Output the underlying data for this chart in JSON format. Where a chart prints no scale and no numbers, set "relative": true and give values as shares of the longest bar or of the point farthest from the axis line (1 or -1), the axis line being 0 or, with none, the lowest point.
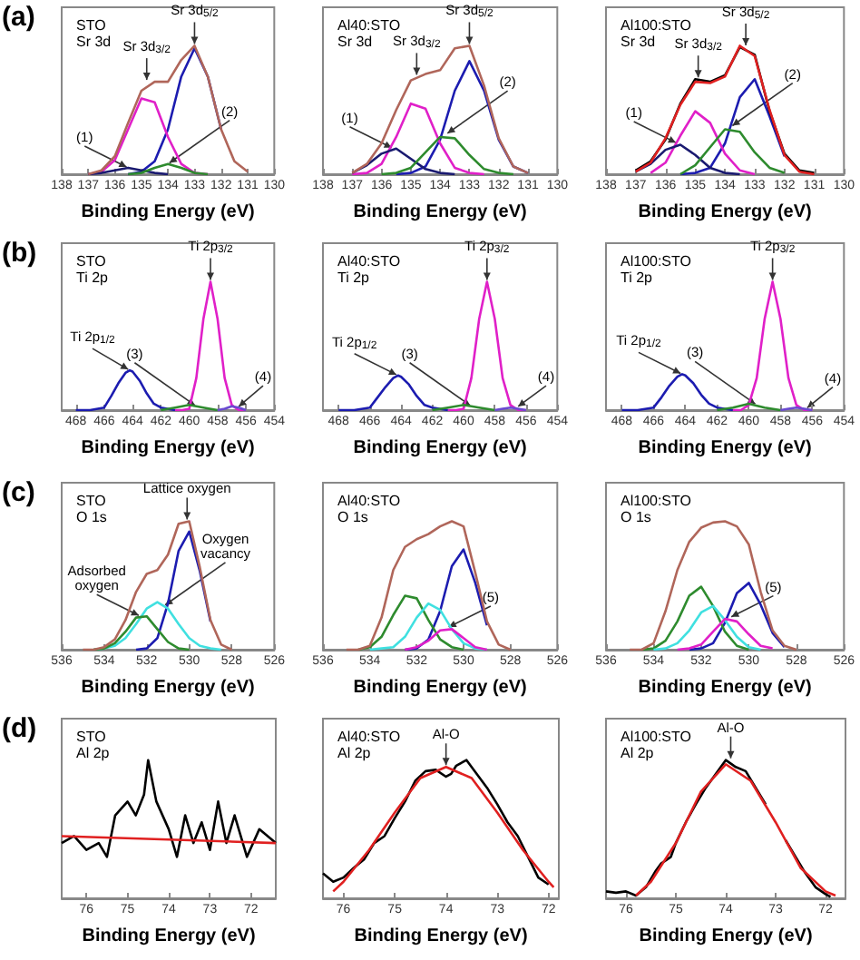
{
  "chart_data": [
    {
      "type": "line",
      "title": "STO",
      "subtitle": "Sr 3d",
      "xlabel": "Binding Energy (eV)",
      "relative": true,
      "tick_labels": "x",
      "xlim": [
        138,
        130
      ],
      "xticks": [
        138,
        137,
        136,
        135,
        134,
        133,
        132,
        131,
        130
      ],
      "annotations": [
        "(a)",
        {
          "text": "Sr 3d$_{3/2}$",
          "x": 134.8,
          "y": 0.72
        },
        {
          "text": "Sr 3d$_{5/2}$",
          "x": 133,
          "y": 1
        },
        {
          "text": "(1)",
          "x": 135.5,
          "y": 0.05
        },
        {
          "text": "(2)",
          "x": 134,
          "y": 0.08
        }
      ],
      "x": [
        137,
        136.5,
        136,
        135.5,
        135,
        134.5,
        134,
        133.5,
        133,
        132.5,
        132,
        131.5,
        131
      ],
      "series": [
        {
          "color": "#1c1cb0",
          "values": [
            null,
            null,
            null,
            0,
            0.02,
            0.1,
            0.35,
            0.76,
            0.98,
            0.76,
            0.35,
            null,
            null
          ]
        },
        {
          "color": "#e020c8",
          "values": [
            0,
            0.02,
            0.11,
            0.35,
            0.59,
            0.56,
            0.29,
            0.08,
            0.01,
            0,
            null,
            null,
            null
          ]
        },
        {
          "color": "#1a1a70",
          "values": [
            0,
            0.01,
            0.03,
            0.05,
            0.03,
            0.01,
            0,
            null,
            null,
            null,
            null,
            null,
            null
          ]
        },
        {
          "color": "#2e8b2e",
          "values": [
            null,
            null,
            null,
            0,
            0.01,
            0.05,
            0.08,
            0.05,
            0.01,
            0,
            null,
            null,
            null
          ]
        },
        {
          "color": "#b0665a",
          "values": [
            0,
            0.03,
            0.14,
            0.4,
            0.65,
            0.72,
            0.72,
            0.89,
            1,
            0.76,
            0.35,
            0.1,
            0.02
          ]
        }
      ]
    },
    {
      "type": "line",
      "title": "Al40:STO",
      "subtitle": "Sr 3d",
      "xlabel": "Binding Energy (eV)",
      "relative": true,
      "tick_labels": "x",
      "xlim": [
        138,
        130
      ],
      "xticks": [
        138,
        137,
        136,
        135,
        134,
        133,
        132,
        131,
        130
      ],
      "annotations": [
        {
          "text": "Sr 3d$_{3/2}$",
          "x": 134.8,
          "y": 0.76
        },
        {
          "text": "Sr 3d$_{5/2}$",
          "x": 133,
          "y": 1
        },
        {
          "text": "(1)",
          "x": 135.6,
          "y": 0.2
        },
        {
          "text": "(2)",
          "x": 133.8,
          "y": 0.31
        }
      ],
      "x": [
        137,
        136.5,
        136,
        135.5,
        135,
        134.5,
        134,
        133.5,
        133,
        132.5,
        132,
        131.5,
        131
      ],
      "series": [
        {
          "color": "#1c1cb0",
          "values": [
            null,
            null,
            null,
            0,
            0.01,
            0.06,
            0.27,
            0.65,
            0.88,
            0.65,
            0.27,
            0.06,
            0.01
          ]
        },
        {
          "color": "#e020c8",
          "values": [
            0,
            0.01,
            0.08,
            0.29,
            0.55,
            0.51,
            0.24,
            0.05,
            0.01,
            0,
            null,
            null,
            null
          ]
        },
        {
          "color": "#1a1a70",
          "values": [
            0.01,
            0.07,
            0.16,
            0.2,
            0.12,
            0.04,
            0.01,
            0,
            null,
            null,
            null,
            null,
            null
          ]
        },
        {
          "color": "#2e8b2e",
          "values": [
            null,
            null,
            0,
            0.01,
            0.05,
            0.17,
            0.29,
            0.28,
            0.15,
            0.04,
            0.01,
            0,
            null
          ]
        },
        {
          "color": "#b0665a",
          "values": [
            0.01,
            0.08,
            0.24,
            0.5,
            0.73,
            0.78,
            0.81,
            0.98,
            1,
            0.69,
            0.28,
            0.06,
            0.01
          ]
        }
      ]
    },
    {
      "type": "line",
      "title": "Al100:STO",
      "subtitle": "Sr 3d",
      "xlabel": "Binding Energy (eV)",
      "relative": true,
      "tick_labels": "x",
      "xlim": [
        138,
        130
      ],
      "xticks": [
        138,
        137,
        136,
        135,
        134,
        133,
        132,
        131,
        130
      ],
      "annotations": [
        {
          "text": "Sr 3d$_{3/2}$",
          "x": 134.9,
          "y": 0.74
        },
        {
          "text": "Sr 3d$_{5/2}$",
          "x": 133.3,
          "y": 0.99
        },
        {
          "text": "(1)",
          "x": 135.6,
          "y": 0.24
        },
        {
          "text": "(2)",
          "x": 133.8,
          "y": 0.37
        }
      ],
      "x": [
        137,
        136.5,
        136,
        135.5,
        135,
        134.5,
        134,
        133.5,
        133,
        132.5,
        132,
        131.5,
        131
      ],
      "series": [
        {
          "color": "#1c1cb0",
          "values": [
            null,
            null,
            null,
            0,
            0.01,
            0.05,
            0.24,
            0.6,
            0.74,
            0.45,
            0.14,
            null,
            null
          ]
        },
        {
          "color": "#e020c8",
          "values": [
            null,
            0.01,
            0.09,
            0.3,
            0.49,
            0.4,
            0.16,
            0.03,
            0,
            null,
            null,
            null,
            null
          ]
        },
        {
          "color": "#1a1a70",
          "values": [
            0.02,
            0.08,
            0.19,
            0.23,
            0.15,
            0.05,
            0.01,
            0,
            null,
            null,
            null,
            null,
            null
          ]
        },
        {
          "color": "#2e8b2e",
          "values": [
            null,
            null,
            null,
            0,
            0.07,
            0.21,
            0.35,
            0.33,
            0.17,
            0.05,
            0.01,
            null,
            null
          ]
        },
        {
          "color": "#000000",
          "values": [
            0.03,
            0.1,
            0.27,
            0.55,
            0.74,
            0.72,
            0.77,
            0.99,
            0.93,
            0.49,
            0.16,
            0.03,
            0.01
          ]
        },
        {
          "color": "#e02020",
          "values": [
            0.02,
            0.09,
            0.28,
            0.54,
            0.72,
            0.71,
            0.76,
            1,
            0.92,
            0.5,
            0.15,
            0.02,
            0
          ]
        }
      ]
    },
    {
      "type": "line",
      "title": "STO",
      "subtitle": "Ti 2p",
      "xlabel": "Binding Energy (eV)",
      "relative": true,
      "tick_labels": "x",
      "xlim": [
        469,
        454
      ],
      "xticks": [
        468,
        466,
        464,
        462,
        460,
        458,
        456,
        454
      ],
      "annotations": [
        "(b)",
        {
          "text": "Ti 2p$_{1/2}$",
          "x": 464.2,
          "y": 0.31
        },
        {
          "text": "Ti 2p$_{3/2}$",
          "x": 458.5,
          "y": 1
        },
        {
          "text": "(3)",
          "x": 459.5,
          "y": 0.03
        },
        {
          "text": "(4)",
          "x": 456.6,
          "y": 0.02
        }
      ],
      "series": [
        {
          "color": "#1c1cb0",
          "x": [
            468,
            467,
            466,
            465.5,
            465,
            464.5,
            464.2,
            464,
            463.5,
            463,
            462.5,
            462,
            461
          ],
          "values": [
            0,
            0,
            0.02,
            0.11,
            0.21,
            0.29,
            0.31,
            0.3,
            0.23,
            0.13,
            0.05,
            0.02,
            0
          ]
        },
        {
          "color": "#e020c8",
          "x": [
            461,
            460.5,
            460,
            459.5,
            459,
            458.5,
            458,
            457.5,
            457,
            456.5,
            456
          ],
          "values": [
            0,
            0,
            0.01,
            0.25,
            0.71,
            1,
            0.71,
            0.25,
            0.04,
            0,
            0
          ]
        },
        {
          "color": "#2e8b2e",
          "x": [
            462,
            461,
            460,
            459,
            458
          ],
          "values": [
            0,
            0.02,
            0.04,
            0.02,
            0
          ]
        },
        {
          "color": "#6a4ad0",
          "x": [
            458,
            457.5,
            457,
            456.5,
            456
          ],
          "values": [
            0,
            0.01,
            0.03,
            0.02,
            0
          ]
        }
      ]
    },
    {
      "type": "line",
      "title": "Al40:STO",
      "subtitle": "Ti 2p",
      "xlabel": "Binding Energy (eV)",
      "relative": true,
      "tick_labels": "x",
      "xlim": [
        469,
        454
      ],
      "xticks": [
        468,
        466,
        464,
        462,
        460,
        458,
        456,
        454
      ],
      "annotations": [
        {
          "text": "Ti 2p$_{1/2}$",
          "x": 464.2,
          "y": 0.27
        },
        {
          "text": "Ti 2p$_{3/2}$",
          "x": 458.5,
          "y": 1
        },
        {
          "text": "(3)",
          "x": 459.5,
          "y": 0.03
        },
        {
          "text": "(4)",
          "x": 456.6,
          "y": 0.02
        }
      ],
      "series": [
        {
          "color": "#1c1cb0",
          "x": [
            468,
            467,
            466,
            465.5,
            465,
            464.5,
            464.2,
            464,
            463.5,
            463,
            462.5,
            462,
            461
          ],
          "values": [
            0,
            0,
            0.02,
            0.1,
            0.18,
            0.25,
            0.27,
            0.26,
            0.2,
            0.11,
            0.04,
            0.02,
            0
          ]
        },
        {
          "color": "#e020c8",
          "x": [
            461,
            460.5,
            460,
            459.5,
            459,
            458.5,
            458,
            457.5,
            457,
            456.5,
            456
          ],
          "values": [
            0,
            0,
            0.01,
            0.25,
            0.71,
            1,
            0.71,
            0.25,
            0.04,
            0,
            0
          ]
        },
        {
          "color": "#2e8b2e",
          "x": [
            462,
            461,
            460,
            459,
            458
          ],
          "values": [
            0,
            0.02,
            0.04,
            0.02,
            0
          ]
        },
        {
          "color": "#6a4ad0",
          "x": [
            458,
            457.5,
            457,
            456.5,
            456
          ],
          "values": [
            0,
            0.01,
            0.02,
            0.01,
            0
          ]
        }
      ]
    },
    {
      "type": "line",
      "title": "Al100:STO",
      "subtitle": "Ti 2p",
      "xlabel": "Binding Energy (eV)",
      "relative": true,
      "tick_labels": "x",
      "xlim": [
        469,
        454
      ],
      "xticks": [
        468,
        466,
        464,
        462,
        460,
        458,
        456,
        454
      ],
      "annotations": [
        {
          "text": "Ti 2p$_{1/2}$",
          "x": 464.2,
          "y": 0.28
        },
        {
          "text": "Ti 2p$_{3/2}$",
          "x": 458.5,
          "y": 1
        },
        {
          "text": "(3)",
          "x": 459.5,
          "y": 0.04
        },
        {
          "text": "(4)",
          "x": 456.4,
          "y": 0.01
        }
      ],
      "series": [
        {
          "color": "#1c1cb0",
          "x": [
            468,
            467,
            466,
            465.5,
            465,
            464.5,
            464.2,
            464,
            463.5,
            463,
            462.5,
            462,
            461
          ],
          "values": [
            0,
            0,
            0.02,
            0.1,
            0.19,
            0.26,
            0.28,
            0.27,
            0.21,
            0.12,
            0.05,
            0.02,
            0
          ]
        },
        {
          "color": "#e020c8",
          "x": [
            461,
            460.5,
            460,
            459.5,
            459,
            458.5,
            458,
            457.5,
            457,
            456.5,
            456
          ],
          "values": [
            0,
            0,
            0.04,
            0.25,
            0.71,
            1,
            0.71,
            0.25,
            0.04,
            0,
            0
          ]
        },
        {
          "color": "#2e8b2e",
          "x": [
            462,
            461,
            460,
            459,
            458
          ],
          "values": [
            0,
            0.02,
            0.05,
            0.02,
            0
          ]
        },
        {
          "color": "#6a4ad0",
          "x": [
            458,
            457.5,
            457,
            456.5,
            456
          ],
          "values": [
            0,
            0.01,
            0.02,
            0.01,
            0
          ]
        }
      ]
    },
    {
      "type": "line",
      "title": "STO",
      "subtitle": "O 1s",
      "xlabel": "Binding Energy (eV)",
      "relative": true,
      "tick_labels": "x",
      "xlim": [
        536,
        526
      ],
      "xticks": [
        536,
        534,
        532,
        530,
        528,
        526
      ],
      "annotations": [
        "(c)",
        {
          "text": "Lattice oxygen",
          "x": 530.1,
          "y": 1
        },
        {
          "text": "Adsorbed oxygen",
          "x": 532.3,
          "y": 0.26
        },
        {
          "text": "Oxygen vacancy",
          "x": 531.2,
          "y": 0.34
        }
      ],
      "x": [
        535,
        534.5,
        534,
        533.5,
        533,
        532.5,
        532,
        531.5,
        531,
        530.5,
        530,
        529.5,
        529,
        528.5,
        528
      ],
      "series": [
        {
          "color": "#1c1cb0",
          "values": [
            null,
            null,
            null,
            null,
            null,
            0,
            0.01,
            0.09,
            0.36,
            0.77,
            0.92,
            0.61,
            0.22,
            null,
            null
          ]
        },
        {
          "color": "#40e0e0",
          "values": [
            null,
            0,
            0.01,
            0.03,
            0.09,
            0.2,
            0.32,
            0.37,
            0.32,
            0.2,
            0.09,
            0.03,
            0.01,
            0,
            null
          ]
        },
        {
          "color": "#2e8b2e",
          "values": [
            null,
            0,
            0.01,
            0.05,
            0.14,
            0.25,
            0.26,
            0.16,
            0.06,
            0.01,
            0,
            null,
            null,
            null,
            null
          ]
        },
        {
          "color": "#b0665a",
          "values": [
            0,
            0,
            0.02,
            0.08,
            0.23,
            0.45,
            0.59,
            0.62,
            0.74,
            0.98,
            1,
            0.64,
            0.23,
            0.04,
            0
          ]
        }
      ]
    },
    {
      "type": "line",
      "title": "Al40:STO",
      "subtitle": "O 1s",
      "xlabel": "Binding Energy (eV)",
      "relative": true,
      "tick_labels": "x",
      "xlim": [
        536,
        526
      ],
      "xticks": [
        536,
        534,
        532,
        530,
        528,
        526
      ],
      "annotations": [
        {
          "text": "(5)",
          "x": 530.7,
          "y": 0.17
        }
      ],
      "x": [
        535,
        534.5,
        534,
        533.5,
        533,
        532.5,
        532,
        531.5,
        531,
        530.5,
        530,
        529.5,
        529,
        528.5,
        528
      ],
      "series": [
        {
          "color": "#1c1cb0",
          "values": [
            null,
            null,
            null,
            null,
            null,
            0,
            0.01,
            0.08,
            0.3,
            0.65,
            0.78,
            0.52,
            0.19,
            null,
            null
          ]
        },
        {
          "color": "#2e8b2e",
          "values": [
            null,
            0,
            0.02,
            0.1,
            0.27,
            0.42,
            0.4,
            0.23,
            0.08,
            0.02,
            0,
            null,
            null,
            null,
            null
          ]
        },
        {
          "color": "#40e0e0",
          "values": [
            null,
            null,
            0,
            0.01,
            0.02,
            0.1,
            0.25,
            0.36,
            0.31,
            0.16,
            0.05,
            0.01,
            0,
            null,
            null
          ]
        },
        {
          "color": "#e020c8",
          "values": [
            null,
            null,
            null,
            null,
            null,
            0,
            0.02,
            0.07,
            0.15,
            0.16,
            0.09,
            0.02,
            0,
            null,
            null
          ]
        },
        {
          "color": "#b0665a",
          "values": [
            0,
            0,
            0.03,
            0.25,
            0.62,
            0.8,
            0.86,
            0.9,
            0.96,
            1,
            0.96,
            0.6,
            0.22,
            0.04,
            0
          ]
        }
      ]
    },
    {
      "type": "line",
      "title": "Al100:STO",
      "subtitle": "O 1s",
      "xlabel": "Binding Energy (eV)",
      "relative": true,
      "tick_labels": "x",
      "xlim": [
        536,
        526
      ],
      "xticks": [
        536,
        534,
        532,
        530,
        528,
        526
      ],
      "annotations": [
        {
          "text": "(5)",
          "x": 530.8,
          "y": 0.25
        }
      ],
      "x": [
        535,
        534.5,
        534,
        533.5,
        533,
        532.5,
        532,
        531.5,
        531,
        530.5,
        530,
        529.5,
        529,
        528.5,
        528
      ],
      "series": [
        {
          "color": "#1c1cb0",
          "values": [
            null,
            null,
            null,
            null,
            null,
            0,
            0.01,
            0.05,
            0.21,
            0.44,
            0.52,
            0.35,
            0.13,
            0.02,
            null
          ]
        },
        {
          "color": "#2e8b2e",
          "values": [
            null,
            0,
            0.01,
            0.07,
            0.22,
            0.42,
            0.49,
            0.34,
            0.14,
            0.03,
            0,
            null,
            null,
            null,
            null
          ]
        },
        {
          "color": "#40e0e0",
          "values": [
            null,
            null,
            0,
            0.01,
            0.05,
            0.15,
            0.29,
            0.34,
            0.23,
            0.1,
            0.02,
            0,
            null,
            null,
            null
          ]
        },
        {
          "color": "#e020c8",
          "values": [
            null,
            null,
            null,
            null,
            0,
            0.01,
            0.04,
            0.14,
            0.24,
            0.22,
            0.12,
            0.03,
            0.01,
            null,
            null
          ]
        },
        {
          "color": "#b0665a",
          "values": [
            0,
            0,
            0.05,
            0.3,
            0.62,
            0.84,
            0.95,
            0.99,
            1,
            0.96,
            0.82,
            0.45,
            0.15,
            0.03,
            0
          ]
        }
      ]
    },
    {
      "type": "line",
      "title": "STO",
      "subtitle": "Al 2p",
      "xlabel": "Binding Energy (eV)",
      "relative": true,
      "tick_labels": "x",
      "xlim": [
        76.6,
        71.4
      ],
      "xticks": [
        76,
        75,
        74,
        73,
        72
      ],
      "annotations": [
        "(d)"
      ],
      "series": [
        {
          "color": "#000000",
          "x": [
            76.6,
            76.3,
            76,
            75.7,
            75.5,
            75.3,
            75,
            74.8,
            74.6,
            74.5,
            74.3,
            74,
            73.8,
            73.6,
            73.4,
            73.2,
            73,
            72.8,
            72.6,
            72.4,
            72.1,
            71.8,
            71.4
          ],
          "values": [
            0.4,
            0.45,
            0.35,
            0.4,
            0.3,
            0.6,
            0.7,
            0.6,
            0.75,
            1,
            0.7,
            0.5,
            0.3,
            0.6,
            0.4,
            0.55,
            0.35,
            0.7,
            0.4,
            0.6,
            0.3,
            0.5,
            0.4
          ]
        },
        {
          "color": "#e02020",
          "x": [
            76.6,
            71.4
          ],
          "values": [
            0.45,
            0.4
          ]
        }
      ]
    },
    {
      "type": "line",
      "title": "Al40:STO",
      "subtitle": "Al 2p",
      "xlabel": "Binding Energy (eV)",
      "relative": true,
      "tick_labels": "x",
      "xlim": [
        76.4,
        71.8
      ],
      "xticks": [
        76,
        75,
        74,
        73,
        72
      ],
      "annotations": [
        {
          "text": "Al-O",
          "x": 74,
          "y": 0.95
        }
      ],
      "series": [
        {
          "color": "#000000",
          "x": [
            76.4,
            76.2,
            76,
            75.8,
            75.6,
            75.4,
            75.2,
            75,
            74.8,
            74.6,
            74.4,
            74.2,
            74,
            73.9,
            73.8,
            73.6,
            73.4,
            73.2,
            73,
            72.8,
            72.6,
            72.4,
            72.2,
            72
          ],
          "values": [
            0.18,
            0.12,
            0.15,
            0.22,
            0.28,
            0.4,
            0.45,
            0.58,
            0.7,
            0.85,
            0.92,
            0.93,
            0.88,
            0.9,
            0.96,
            1,
            0.9,
            0.8,
            0.68,
            0.55,
            0.45,
            0.3,
            0.15,
            0.1
          ]
        },
        {
          "color": "#e02020",
          "x": [
            76.2,
            76,
            75.5,
            75,
            74.5,
            74,
            73.5,
            73,
            72.5,
            72,
            71.9
          ],
          "values": [
            0.05,
            0.12,
            0.35,
            0.62,
            0.87,
            0.95,
            0.87,
            0.62,
            0.35,
            0.12,
            0.08
          ]
        }
      ]
    },
    {
      "type": "line",
      "title": "Al100:STO",
      "subtitle": "Al 2p",
      "xlabel": "Binding Energy (eV)",
      "relative": true,
      "tick_labels": "x",
      "xlim": [
        76.4,
        71.6
      ],
      "xticks": [
        76,
        75,
        74,
        73,
        72
      ],
      "annotations": [
        {
          "text": "Al-O",
          "x": 73.9,
          "y": 1
        }
      ],
      "series": [
        {
          "color": "#000000",
          "x": [
            76.4,
            76.2,
            76,
            75.8,
            75.6,
            75.4,
            75.3,
            75.1,
            75,
            74.8,
            74.6,
            74.4,
            74.2,
            74,
            73.8,
            73.6,
            73.4,
            73.2,
            73,
            72.8,
            72.6,
            72.4,
            72.2,
            72,
            71.9
          ],
          "values": [
            0.05,
            0.04,
            0.05,
            0.02,
            0.08,
            0.2,
            0.25,
            0.3,
            0.4,
            0.55,
            0.68,
            0.8,
            0.9,
            1,
            0.95,
            0.92,
            0.8,
            0.68,
            null,
            0.42,
            0.3,
            0.18,
            0.08,
            0.03,
            0.01
          ]
        },
        {
          "color": "#e02020",
          "x": [
            75.8,
            75.5,
            75,
            74.5,
            74,
            73.5,
            73,
            72.5,
            72,
            71.8
          ],
          "values": [
            0.02,
            0.12,
            0.4,
            0.77,
            0.97,
            0.85,
            0.55,
            0.22,
            0.05,
            0.02
          ]
        }
      ]
    }
  ]
}
